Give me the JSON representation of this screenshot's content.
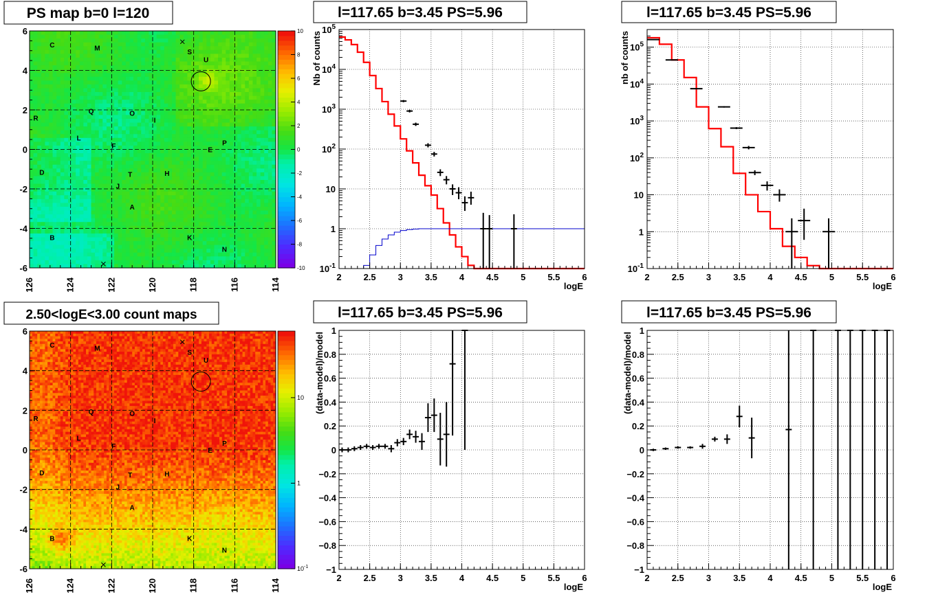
{
  "panels": [
    {
      "id": "ps-map",
      "title": "PS map b=0 l=120",
      "chart_data": {
        "type": "heatmap",
        "x_range": [
          126,
          114
        ],
        "y_range": [
          -6,
          6
        ],
        "x_ticks": [
          "126",
          "124",
          "122",
          "120",
          "118",
          "116",
          "114"
        ],
        "y_ticks": [
          "-6",
          "-4",
          "-2",
          "0",
          "2",
          "4",
          "6"
        ],
        "colorbar": {
          "range": [
            -10,
            10
          ],
          "ticks": [
            "-10",
            "-8",
            "-6",
            "-4",
            "-2",
            "0",
            "2",
            "4",
            "6",
            "8",
            "10"
          ],
          "scale": "linear"
        },
        "grid": true,
        "source_labels": [
          {
            "t": "C",
            "l": 124.9,
            "b": 5.3
          },
          {
            "t": "M",
            "l": 122.7,
            "b": 5.15
          },
          {
            "t": "S",
            "l": 118.2,
            "b": 4.95
          },
          {
            "t": "U",
            "l": 117.4,
            "b": 4.55
          },
          {
            "t": "Q",
            "l": 123.0,
            "b": 1.95
          },
          {
            "t": "O",
            "l": 121.0,
            "b": 1.85
          },
          {
            "t": "I",
            "l": 119.9,
            "b": 1.5
          },
          {
            "t": "R",
            "l": 125.7,
            "b": 1.6
          },
          {
            "t": "L",
            "l": 123.6,
            "b": 0.6
          },
          {
            "t": "F",
            "l": 121.9,
            "b": 0.2
          },
          {
            "t": "E",
            "l": 117.2,
            "b": 0.0
          },
          {
            "t": "P",
            "l": 116.5,
            "b": 0.35
          },
          {
            "t": "D",
            "l": 125.4,
            "b": -1.15
          },
          {
            "t": "T",
            "l": 121.1,
            "b": -1.25
          },
          {
            "t": "H",
            "l": 119.3,
            "b": -1.2
          },
          {
            "t": "J",
            "l": 121.7,
            "b": -1.85
          },
          {
            "t": "A",
            "l": 121.0,
            "b": -2.9
          },
          {
            "t": "B",
            "l": 124.9,
            "b": -4.45
          },
          {
            "t": "K",
            "l": 118.2,
            "b": -4.45
          },
          {
            "t": "N",
            "l": 116.5,
            "b": -5.05
          }
        ],
        "circle": {
          "l": 117.65,
          "b": 3.45
        },
        "crosses": [
          {
            "l": 118.55,
            "b": 5.45
          },
          {
            "l": 122.4,
            "b": -5.8
          }
        ]
      }
    },
    {
      "id": "spectrum-1",
      "title": "l=117.65 b=3.45 PS=5.96",
      "chart_data": {
        "type": "line",
        "xlabel": "logE",
        "ylabel": "Nb of counts",
        "x_range": [
          2,
          6
        ],
        "y_range": [
          0.1,
          100000
        ],
        "y_scale": "log",
        "x_ticks": [
          "2",
          "2.5",
          "3",
          "3.5",
          "4",
          "4.5",
          "5",
          "5.5",
          "6"
        ],
        "y_ticks": [
          {
            "v": 0.1,
            "label": "10",
            "exp": "-1"
          },
          {
            "v": 1,
            "label": "1"
          },
          {
            "v": 10,
            "label": "10"
          },
          {
            "v": 100,
            "label": "10",
            "exp": "2"
          },
          {
            "v": 1000,
            "label": "10",
            "exp": "3"
          },
          {
            "v": 10000,
            "label": "10",
            "exp": "4"
          },
          {
            "v": 100000,
            "label": "10",
            "exp": "5"
          }
        ],
        "grid": true,
        "series": [
          {
            "role": "model",
            "color": "#ff0000",
            "bin_width": 0.1,
            "x_start": 2.0,
            "values": [
              65000,
              55000,
              42000,
              27000,
              15000,
              7000,
              3300,
              1550,
              750,
              380,
              180,
              90,
              45,
              22,
              12,
              7,
              3.2,
              1.4,
              0.7,
              0.35,
              0.2,
              0.12,
              0.1,
              0.1,
              0.1,
              0.1,
              0.1,
              0.1,
              0.1,
              0.1,
              0.1,
              0.1,
              0.1,
              0.1,
              0.1,
              0.1,
              0.1,
              0.1,
              0.1,
              0.1
            ]
          },
          {
            "role": "efficiency",
            "color": "#0000cc",
            "bin_width": 0.1,
            "x_start": 2.0,
            "values": [
              0.02,
              0.03,
              0.05,
              0.08,
              0.12,
              0.22,
              0.38,
              0.55,
              0.7,
              0.82,
              0.9,
              0.95,
              0.98,
              1,
              1,
              1,
              1,
              1,
              1,
              1,
              1,
              1,
              1,
              1,
              1,
              1,
              1,
              1,
              1,
              1,
              1,
              1,
              1,
              1,
              1,
              1,
              1,
              1,
              1,
              1
            ]
          },
          {
            "role": "data",
            "color": "#000000",
            "points": [
              {
                "x": 3.05,
                "y": 1600,
                "lo": 1500,
                "hi": 1700,
                "dx": 0.05
              },
              {
                "x": 3.15,
                "y": 900,
                "lo": 830,
                "hi": 970,
                "dx": 0.05
              },
              {
                "x": 3.25,
                "y": 420,
                "lo": 380,
                "hi": 460,
                "dx": 0.05
              },
              {
                "x": 3.45,
                "y": 125,
                "lo": 110,
                "hi": 140,
                "dx": 0.05
              },
              {
                "x": 3.55,
                "y": 75,
                "lo": 65,
                "hi": 85,
                "dx": 0.05
              },
              {
                "x": 3.65,
                "y": 26,
                "lo": 21,
                "hi": 31,
                "dx": 0.05
              },
              {
                "x": 3.75,
                "y": 17,
                "lo": 13,
                "hi": 21,
                "dx": 0.05
              },
              {
                "x": 3.85,
                "y": 10,
                "lo": 7,
                "hi": 13,
                "dx": 0.05
              },
              {
                "x": 3.95,
                "y": 8,
                "lo": 5.5,
                "hi": 11,
                "dx": 0.05
              },
              {
                "x": 4.05,
                "y": 4.5,
                "lo": 2.8,
                "hi": 6.5,
                "dx": 0.05
              },
              {
                "x": 4.15,
                "y": 6,
                "lo": 4,
                "hi": 8.5,
                "dx": 0.05
              },
              {
                "x": 4.35,
                "y": 1,
                "lo": 0.1,
                "hi": 2.5,
                "dx": 0.05
              },
              {
                "x": 4.45,
                "y": 1,
                "lo": 0.1,
                "hi": 2.2,
                "dx": 0.05
              },
              {
                "x": 4.85,
                "y": 1,
                "lo": 0.1,
                "hi": 2.3,
                "dx": 0.05
              }
            ]
          }
        ]
      }
    },
    {
      "id": "spectrum-2",
      "title": "l=117.65 b=3.45 PS=5.96",
      "chart_data": {
        "type": "line",
        "xlabel": "logE",
        "ylabel": "nb of counts",
        "x_range": [
          2,
          6
        ],
        "y_range": [
          0.1,
          300000
        ],
        "y_scale": "log",
        "x_ticks": [
          "2",
          "2.5",
          "3",
          "3.5",
          "4",
          "4.5",
          "5",
          "5.5",
          "6"
        ],
        "y_ticks": [
          {
            "v": 0.1,
            "label": "10",
            "exp": "-1"
          },
          {
            "v": 1,
            "label": "1"
          },
          {
            "v": 10,
            "label": "10"
          },
          {
            "v": 100,
            "label": "10",
            "exp": "2"
          },
          {
            "v": 1000,
            "label": "10",
            "exp": "3"
          },
          {
            "v": 10000,
            "label": "10",
            "exp": "4"
          },
          {
            "v": 100000,
            "label": "10",
            "exp": "5"
          }
        ],
        "grid": true,
        "series": [
          {
            "role": "model",
            "color": "#ff0000",
            "bin_width": 0.2,
            "x_start": 2.0,
            "values": [
              180000,
              120000,
              45000,
              15000,
              2400,
              620,
              200,
              38,
              10,
              3.5,
              1.2,
              0.4,
              0.2,
              0.12,
              0.1,
              0.1,
              0.1,
              0.1,
              0.1,
              0.1
            ]
          },
          {
            "role": "data",
            "color": "#000000",
            "points": [
              {
                "x": 2.1,
                "y": 160000,
                "lo": 158000,
                "hi": 162000,
                "dx": 0.1
              },
              {
                "x": 2.4,
                "y": 45000,
                "lo": 44000,
                "hi": 46000,
                "dx": 0.1
              },
              {
                "x": 2.8,
                "y": 7500,
                "lo": 7300,
                "hi": 7700,
                "dx": 0.1
              },
              {
                "x": 3.25,
                "y": 2400,
                "lo": 2300,
                "hi": 2500,
                "dx": 0.1
              },
              {
                "x": 3.45,
                "y": 640,
                "lo": 600,
                "hi": 680,
                "dx": 0.1
              },
              {
                "x": 3.65,
                "y": 190,
                "lo": 170,
                "hi": 210,
                "dx": 0.1
              },
              {
                "x": 3.75,
                "y": 40,
                "lo": 34,
                "hi": 46,
                "dx": 0.1
              },
              {
                "x": 3.95,
                "y": 18,
                "lo": 13,
                "hi": 23,
                "dx": 0.1
              },
              {
                "x": 4.15,
                "y": 10,
                "lo": 6.5,
                "hi": 14,
                "dx": 0.1
              },
              {
                "x": 4.35,
                "y": 1,
                "lo": 0.1,
                "hi": 2.3,
                "dx": 0.1
              },
              {
                "x": 4.55,
                "y": 2,
                "lo": 0.6,
                "hi": 4.2,
                "dx": 0.1
              },
              {
                "x": 4.95,
                "y": 1,
                "lo": 0.1,
                "hi": 2.3,
                "dx": 0.1
              }
            ]
          }
        ]
      }
    },
    {
      "id": "count-map",
      "title": "2.50<logE<3.00 count maps",
      "chart_data": {
        "type": "heatmap",
        "x_range": [
          126,
          114
        ],
        "y_range": [
          -6,
          6
        ],
        "x_ticks": [
          "126",
          "124",
          "122",
          "120",
          "118",
          "116",
          "114"
        ],
        "y_ticks": [
          "-6",
          "-4",
          "-2",
          "0",
          "2",
          "4",
          "6"
        ],
        "colorbar": {
          "range": [
            0.1,
            60
          ],
          "scale": "log",
          "ticks": [
            {
              "v": 0.1,
              "label": "10",
              "exp": "-1"
            },
            {
              "v": 1,
              "label": "1"
            },
            {
              "v": 10,
              "label": "10"
            }
          ]
        },
        "grid": true,
        "circle": {
          "l": 117.65,
          "b": 3.45
        },
        "crosses": [
          {
            "l": 118.55,
            "b": 5.45
          },
          {
            "l": 122.4,
            "b": -5.8
          }
        ]
      }
    },
    {
      "id": "residual-1",
      "title": "l=117.65 b=3.45 PS=5.96",
      "chart_data": {
        "type": "scatter",
        "xlabel": "logE",
        "ylabel": "(data-model)/model",
        "x_range": [
          2,
          6
        ],
        "y_range": [
          -1,
          1
        ],
        "x_ticks": [
          "2",
          "2.5",
          "3",
          "3.5",
          "4",
          "4.5",
          "5",
          "5.5",
          "6"
        ],
        "y_ticks": [
          "−1",
          "−0.8",
          "−0.6",
          "−0.4",
          "−0.2",
          "0",
          "0.2",
          "0.4",
          "0.6",
          "0.8",
          "1"
        ],
        "grid": true,
        "points": [
          {
            "x": 2.05,
            "y": 0.0,
            "e": 0.02
          },
          {
            "x": 2.15,
            "y": 0.0,
            "e": 0.02
          },
          {
            "x": 2.25,
            "y": 0.01,
            "e": 0.02
          },
          {
            "x": 2.35,
            "y": 0.02,
            "e": 0.02
          },
          {
            "x": 2.45,
            "y": 0.03,
            "e": 0.02
          },
          {
            "x": 2.55,
            "y": 0.02,
            "e": 0.02
          },
          {
            "x": 2.65,
            "y": 0.03,
            "e": 0.02
          },
          {
            "x": 2.75,
            "y": 0.03,
            "e": 0.02
          },
          {
            "x": 2.85,
            "y": 0.01,
            "e": 0.03
          },
          {
            "x": 2.95,
            "y": 0.06,
            "e": 0.03
          },
          {
            "x": 3.05,
            "y": 0.07,
            "e": 0.03
          },
          {
            "x": 3.15,
            "y": 0.13,
            "e": 0.04
          },
          {
            "x": 3.25,
            "y": 0.11,
            "e": 0.05
          },
          {
            "x": 3.35,
            "y": 0.07,
            "e": 0.07
          },
          {
            "x": 3.45,
            "y": 0.27,
            "e": 0.12
          },
          {
            "x": 3.55,
            "y": 0.29,
            "e": 0.14
          },
          {
            "x": 3.65,
            "y": 0.09,
            "e": 0.22
          },
          {
            "x": 3.75,
            "y": 0.13,
            "e": 0.27
          },
          {
            "x": 3.85,
            "y": 0.72,
            "e": 0.6
          },
          {
            "x": 4.05,
            "y": 1.0,
            "e": 1.0
          }
        ]
      }
    },
    {
      "id": "residual-2",
      "title": "l=117.65 b=3.45 PS=5.96",
      "chart_data": {
        "type": "scatter",
        "xlabel": "logE",
        "ylabel": "(data-model)/model",
        "x_range": [
          2,
          6
        ],
        "y_range": [
          -1,
          1
        ],
        "x_ticks": [
          "2",
          "2.5",
          "3",
          "3.5",
          "4",
          "4.5",
          "5",
          "5.5",
          "6"
        ],
        "y_ticks": [
          "−1",
          "−0.8",
          "−0.6",
          "−0.4",
          "−0.2",
          "0",
          "0.2",
          "0.4",
          "0.6",
          "0.8",
          "1"
        ],
        "grid": true,
        "points": [
          {
            "x": 2.1,
            "y": 0.0,
            "e": 0.01
          },
          {
            "x": 2.3,
            "y": 0.01,
            "e": 0.01
          },
          {
            "x": 2.5,
            "y": 0.02,
            "e": 0.01
          },
          {
            "x": 2.7,
            "y": 0.02,
            "e": 0.01
          },
          {
            "x": 2.9,
            "y": 0.03,
            "e": 0.02
          },
          {
            "x": 3.1,
            "y": 0.09,
            "e": 0.02
          },
          {
            "x": 3.3,
            "y": 0.09,
            "e": 0.04
          },
          {
            "x": 3.5,
            "y": 0.28,
            "e": 0.09
          },
          {
            "x": 3.7,
            "y": 0.1,
            "e": 0.17
          },
          {
            "x": 4.3,
            "y": 0.17,
            "e": 1.5
          },
          {
            "x": 4.7,
            "y": 1.0,
            "e": 2.0
          },
          {
            "x": 5.1,
            "y": 1.0,
            "e": 2.0
          },
          {
            "x": 5.3,
            "y": 1.0,
            "e": 2.0
          },
          {
            "x": 5.5,
            "y": 1.0,
            "e": 2.0
          },
          {
            "x": 5.7,
            "y": 1.0,
            "e": 2.0
          },
          {
            "x": 5.9,
            "y": 1.0,
            "e": 2.0
          }
        ]
      }
    }
  ]
}
